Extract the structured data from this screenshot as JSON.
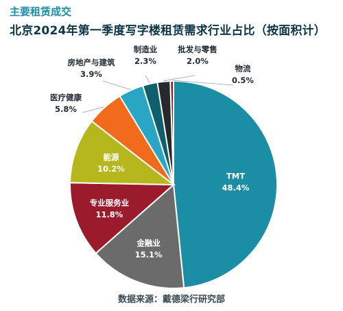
{
  "header": {
    "kicker": "主要租赁成交",
    "title": "北京2024年第一季度写字楼租赁需求行业占比（按面积计）"
  },
  "footer": {
    "source": "数据来源：戴德梁行研究部"
  },
  "chart_data": {
    "type": "pie",
    "title": "北京2024年第一季度写字楼租赁需求行业占比（按面积计）",
    "start_angle_deg": 0,
    "direction": "clockwise",
    "legend": "none",
    "slices": [
      {
        "name": "TMT",
        "value": 48.4,
        "label": "48.4%",
        "color": "#1b8ea6",
        "text_color": "#ffffff"
      },
      {
        "name": "金融业",
        "value": 15.1,
        "label": "15.1%",
        "color": "#6b6b6b",
        "text_color": "#ffffff"
      },
      {
        "name": "专业服务业",
        "value": 11.8,
        "label": "11.8%",
        "color": "#9b1b2c",
        "text_color": "#ffffff"
      },
      {
        "name": "能源",
        "value": 10.2,
        "label": "10.2%",
        "color": "#b5b71c",
        "text_color": "#ffffff"
      },
      {
        "name": "医疗健康",
        "value": 5.8,
        "label": "5.8%",
        "color": "#f26a1b",
        "text_color": "#1f2a33"
      },
      {
        "name": "房地产与建筑",
        "value": 3.9,
        "label": "3.9%",
        "color": "#2aa6c4",
        "text_color": "#1f2a33"
      },
      {
        "name": "制造业",
        "value": 2.3,
        "label": "2.3%",
        "color": "#0f5f6c",
        "text_color": "#1f2a33"
      },
      {
        "name": "批发与零售",
        "value": 2.0,
        "label": "2.0%",
        "color": "#26292c",
        "text_color": "#1f2a33"
      },
      {
        "name": "物流",
        "value": 0.5,
        "label": "0.5%",
        "color": "#8a1a24",
        "text_color": "#1f2a33"
      }
    ]
  }
}
